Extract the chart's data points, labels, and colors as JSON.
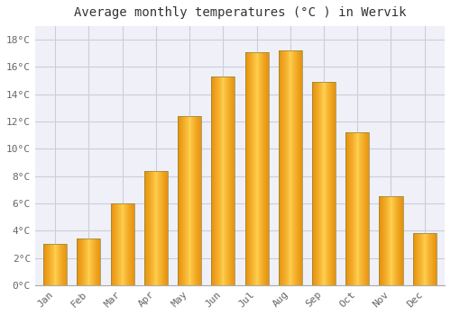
{
  "title": "Average monthly temperatures (°C ) in Wervik",
  "months": [
    "Jan",
    "Feb",
    "Mar",
    "Apr",
    "May",
    "Jun",
    "Jul",
    "Aug",
    "Sep",
    "Oct",
    "Nov",
    "Dec"
  ],
  "values": [
    3.0,
    3.4,
    6.0,
    8.4,
    12.4,
    15.3,
    17.1,
    17.2,
    14.9,
    11.2,
    6.5,
    3.8
  ],
  "bar_color_center": "#FFD050",
  "bar_color_edge": "#E8900A",
  "bar_border_color": "#888844",
  "ylim": [
    0,
    19
  ],
  "yticks": [
    0,
    2,
    4,
    6,
    8,
    10,
    12,
    14,
    16,
    18
  ],
  "background_color": "#FFFFFF",
  "plot_bg_color": "#F0F0F8",
  "grid_color": "#CCCCDD",
  "title_fontsize": 10,
  "tick_fontsize": 8,
  "tick_color": "#666666",
  "font_family": "monospace"
}
